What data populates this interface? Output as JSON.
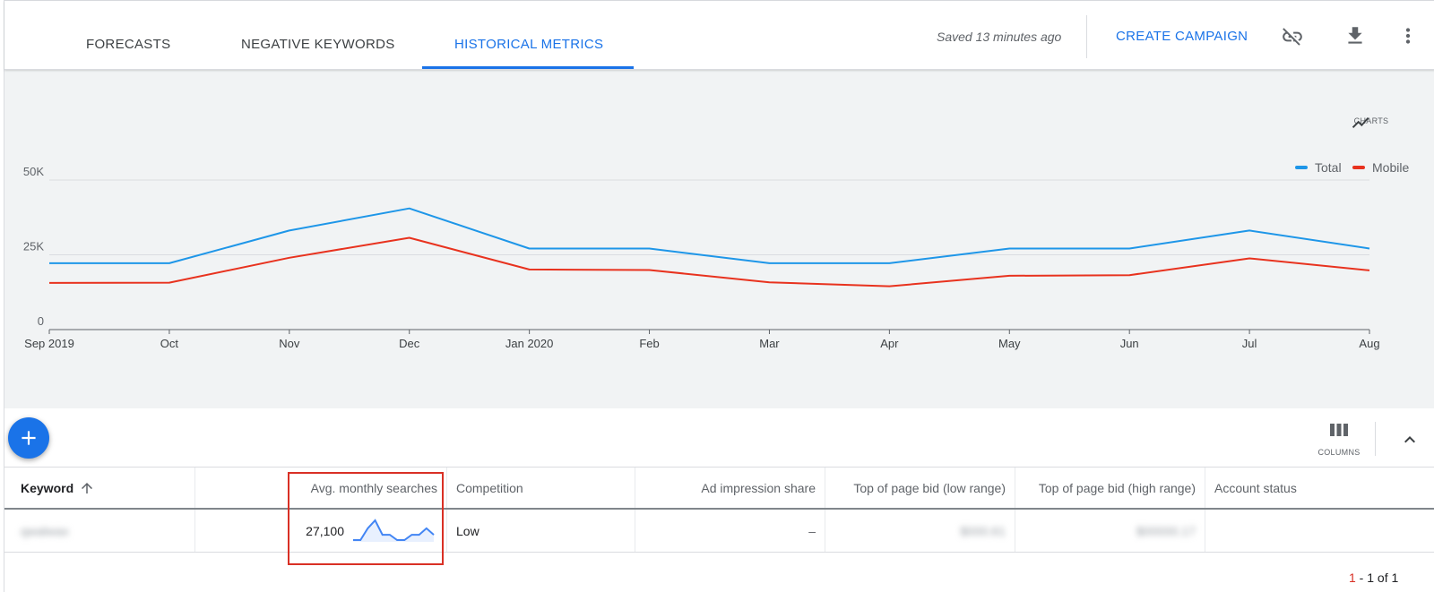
{
  "tabs": [
    {
      "label": "FORECASTS"
    },
    {
      "label": "NEGATIVE KEYWORDS"
    },
    {
      "label": "HISTORICAL METRICS"
    }
  ],
  "header": {
    "saved_text": "Saved 13 minutes ago",
    "create_campaign": "CREATE CAMPAIGN",
    "icons": [
      "link-off-icon",
      "download-icon",
      "more-vert-icon"
    ]
  },
  "charts_button": {
    "label": "CHARTS",
    "icon": "trending-up-icon"
  },
  "legend": [
    {
      "name": "Total",
      "color": "#1e96e8"
    },
    {
      "name": "Mobile",
      "color": "#e8321e"
    }
  ],
  "chart_data": {
    "type": "line",
    "x": [
      "Sep 2019",
      "Oct",
      "Nov",
      "Dec",
      "Jan 2020",
      "Feb",
      "Mar",
      "Apr",
      "May",
      "Jun",
      "Jul",
      "Aug"
    ],
    "yticks": [
      "0",
      "25K",
      "50K"
    ],
    "ylim": [
      0,
      50000
    ],
    "grid": true,
    "legend_position": "top-right",
    "series": [
      {
        "name": "Total",
        "color": "#1e96e8",
        "values": [
          22200,
          22200,
          33100,
          40500,
          27100,
          27100,
          22200,
          22200,
          27100,
          27100,
          33100,
          27100
        ]
      },
      {
        "name": "Mobile",
        "color": "#e8321e",
        "values": [
          15600,
          15700,
          24000,
          30700,
          20100,
          19900,
          15800,
          14500,
          18000,
          18200,
          23800,
          19800
        ]
      }
    ]
  },
  "toolbar": {
    "add_icon": "add-icon",
    "columns_label": "COLUMNS",
    "columns_icon": "columns-icon",
    "collapse_icon": "chevron-up-icon"
  },
  "table": {
    "headers": {
      "keyword": "Keyword",
      "avg_monthly": "Avg. monthly searches",
      "competition": "Competition",
      "ad_impression": "Ad impression share",
      "low_bid": "Top of page bid (low range)",
      "high_bid": "Top of page bid (high range)",
      "account_status": "Account status"
    },
    "rows": [
      {
        "keyword": "qwalwax",
        "avg_monthly": "27,100",
        "trend": [
          22200,
          22200,
          33100,
          40500,
          27100,
          27100,
          22200,
          22200,
          27100,
          27100,
          33100,
          27100
        ],
        "competition": "Low",
        "ad_impression": "–",
        "low_bid": "$000.61",
        "high_bid": "$00000.17",
        "account_status": ""
      }
    ]
  },
  "pagination": {
    "current": "1",
    "rest": " - 1 of 1"
  }
}
